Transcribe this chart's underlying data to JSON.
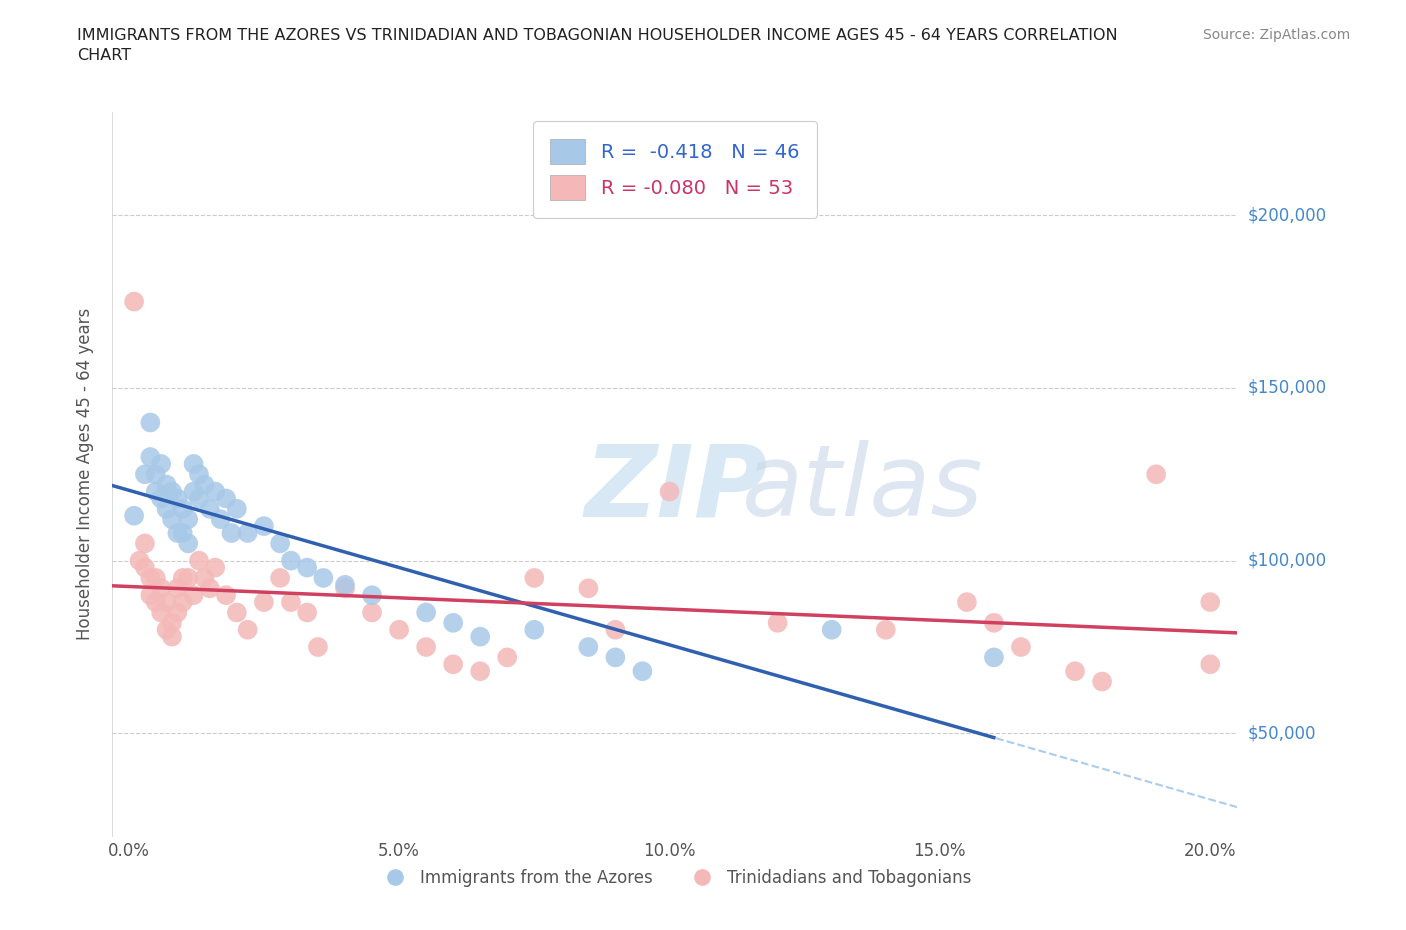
{
  "title": "IMMIGRANTS FROM THE AZORES VS TRINIDADIAN AND TOBAGONIAN HOUSEHOLDER INCOME AGES 45 - 64 YEARS CORRELATION\nCHART",
  "source_text": "Source: ZipAtlas.com",
  "ylabel": "Householder Income Ages 45 - 64 years",
  "xlabel_ticks": [
    "0.0%",
    "5.0%",
    "10.0%",
    "15.0%",
    "20.0%"
  ],
  "xlabel_vals": [
    0.0,
    0.05,
    0.1,
    0.15,
    0.2
  ],
  "ytick_labels": [
    "$50,000",
    "$100,000",
    "$150,000",
    "$200,000"
  ],
  "ytick_vals": [
    50000,
    100000,
    150000,
    200000
  ],
  "ylim": [
    20000,
    230000
  ],
  "xlim": [
    -0.003,
    0.205
  ],
  "legend_r_blue": "R =  -0.418",
  "legend_n_blue": "N = 46",
  "legend_r_pink": "R = -0.080",
  "legend_n_pink": "N = 53",
  "blue_scatter_color": "#a8c8e8",
  "pink_scatter_color": "#f4b8b8",
  "blue_line_color": "#3060b0",
  "pink_line_color": "#d04060",
  "grid_color": "#cccccc",
  "azores_x": [
    0.001,
    0.003,
    0.004,
    0.004,
    0.005,
    0.005,
    0.006,
    0.006,
    0.007,
    0.007,
    0.008,
    0.008,
    0.009,
    0.009,
    0.01,
    0.01,
    0.011,
    0.011,
    0.012,
    0.012,
    0.013,
    0.013,
    0.014,
    0.015,
    0.016,
    0.017,
    0.018,
    0.019,
    0.02,
    0.022,
    0.025,
    0.028,
    0.03,
    0.033,
    0.036,
    0.04,
    0.045,
    0.055,
    0.06,
    0.065,
    0.075,
    0.085,
    0.09,
    0.095,
    0.13,
    0.16
  ],
  "azores_y": [
    113000,
    125000,
    140000,
    130000,
    125000,
    120000,
    128000,
    118000,
    122000,
    115000,
    120000,
    112000,
    118000,
    108000,
    115000,
    108000,
    112000,
    105000,
    128000,
    120000,
    125000,
    118000,
    122000,
    115000,
    120000,
    112000,
    118000,
    108000,
    115000,
    108000,
    110000,
    105000,
    100000,
    98000,
    95000,
    93000,
    90000,
    85000,
    82000,
    78000,
    80000,
    75000,
    72000,
    68000,
    80000,
    72000
  ],
  "tt_x": [
    0.001,
    0.002,
    0.003,
    0.003,
    0.004,
    0.004,
    0.005,
    0.005,
    0.006,
    0.006,
    0.007,
    0.007,
    0.008,
    0.008,
    0.009,
    0.009,
    0.01,
    0.01,
    0.011,
    0.012,
    0.013,
    0.014,
    0.015,
    0.016,
    0.018,
    0.02,
    0.022,
    0.025,
    0.028,
    0.03,
    0.033,
    0.035,
    0.04,
    0.045,
    0.05,
    0.055,
    0.06,
    0.065,
    0.07,
    0.075,
    0.085,
    0.09,
    0.1,
    0.12,
    0.14,
    0.155,
    0.16,
    0.165,
    0.175,
    0.18,
    0.19,
    0.2,
    0.2
  ],
  "tt_y": [
    175000,
    100000,
    105000,
    98000,
    95000,
    90000,
    88000,
    95000,
    92000,
    85000,
    88000,
    80000,
    82000,
    78000,
    92000,
    85000,
    95000,
    88000,
    95000,
    90000,
    100000,
    95000,
    92000,
    98000,
    90000,
    85000,
    80000,
    88000,
    95000,
    88000,
    85000,
    75000,
    92000,
    85000,
    80000,
    75000,
    70000,
    68000,
    72000,
    95000,
    92000,
    80000,
    120000,
    82000,
    80000,
    88000,
    82000,
    75000,
    68000,
    65000,
    125000,
    88000,
    70000
  ]
}
